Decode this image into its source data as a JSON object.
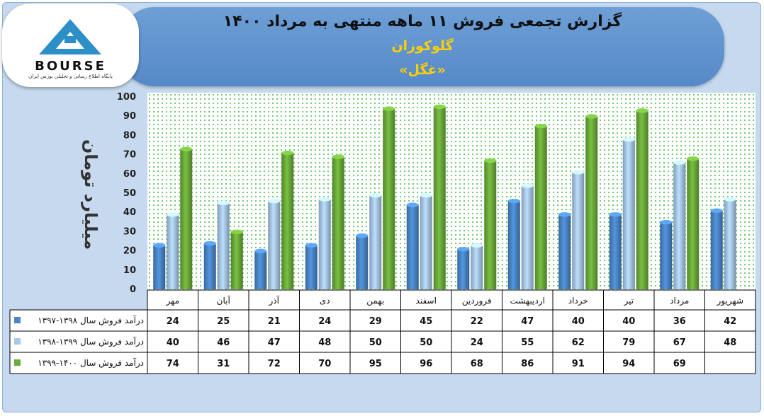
{
  "header": {
    "title": "گزارش تجمعی فروش ۱۱ ماهه منتهی به مرداد ۱۴۰۰",
    "company": "گلوکوزان",
    "ticker": "«غگل»"
  },
  "logo": {
    "word": "BOURSE",
    "subtitle": "پایگاه اطلاع رسانی و تحلیلی بورس ایران"
  },
  "chart_data": {
    "type": "bar",
    "ylabel": "میلیارد تومان",
    "ylim": [
      0,
      100
    ],
    "yticks": [
      0,
      10,
      20,
      30,
      40,
      50,
      60,
      70,
      80,
      90,
      100
    ],
    "grid": false,
    "legend": "data-table",
    "categories": [
      "مهر",
      "آبان",
      "آذر",
      "دی",
      "بهمن",
      "اسفند",
      "فروردین",
      "اردیبهشت",
      "خرداد",
      "تیر",
      "مرداد",
      "شهریور"
    ],
    "series": [
      {
        "name": "درآمد فروش سال ۱۳۹۸-۱۳۹۷",
        "color": "#4a86c8",
        "values": [
          24,
          25,
          21,
          24,
          29,
          45,
          22,
          47,
          40,
          40,
          36,
          42
        ]
      },
      {
        "name": "درآمد فروش سال ۱۳۹۹-۱۳۹۸",
        "color": "#a8c8ea",
        "values": [
          40,
          46,
          47,
          48,
          50,
          50,
          24,
          55,
          62,
          79,
          67,
          48
        ]
      },
      {
        "name": "درآمد فروش سال ۱۴۰۰-۱۳۹۹",
        "color": "#6bab3a",
        "values": [
          74,
          31,
          72,
          70,
          95,
          96,
          68,
          86,
          91,
          94,
          69,
          null
        ]
      }
    ]
  }
}
